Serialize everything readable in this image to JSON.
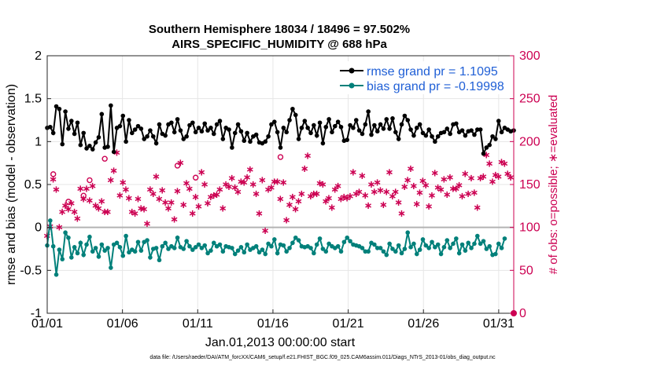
{
  "chart_data": {
    "type": "line",
    "title_line1": "Southern Hemisphere 18034 / 18496 = 97.502%",
    "title_line2": "AIRS_SPECIFIC_HUMIDITY @ 688 hPa",
    "xlabel": "Jan.01,2013 00:00:00 start",
    "ylabel_left": "rmse and bias (model - observation)",
    "ylabel_right": "# of obs: o=possible; ∗=evaluated",
    "footer": "data file: /Users/raeder/DAI/ATM_forcXX/CAM6_setup/f.e21.FHIST_BGC.f09_025.CAM6assim.011/Diags_NTrS_2013-01/obs_diag_output.nc",
    "x_range": [
      1,
      32
    ],
    "x_ticks": [
      {
        "value": 1,
        "label": "01/01"
      },
      {
        "value": 6,
        "label": "01/06"
      },
      {
        "value": 11,
        "label": "01/11"
      },
      {
        "value": 16,
        "label": "01/16"
      },
      {
        "value": 21,
        "label": "01/21"
      },
      {
        "value": 26,
        "label": "01/26"
      },
      {
        "value": 31,
        "label": "01/31"
      }
    ],
    "y_left_range": [
      -1,
      2
    ],
    "y_left_ticks": [
      "-1",
      "-0.5",
      "0",
      "0.5",
      "1",
      "1.5",
      "2"
    ],
    "y_right_range": [
      0,
      300
    ],
    "y_right_ticks": [
      "0",
      "50",
      "100",
      "150",
      "200",
      "250",
      "300"
    ],
    "legend": [
      {
        "label": "rmse grand pr = 1.1095",
        "color": "#000000"
      },
      {
        "label": "bias grand pr = -0.19998",
        "color": "#00807a"
      }
    ],
    "series": [
      {
        "name": "rmse",
        "color": "#000000",
        "values": [
          1.16,
          1.17,
          1.1,
          1.41,
          1.38,
          0.97,
          1.35,
          1.15,
          1.24,
          1.09,
          1.22,
          0.96,
          1.1,
          0.92,
          0.95,
          0.91,
          0.99,
          1.05,
          1.32,
          0.93,
          0.94,
          1.42,
          0.88,
          1.16,
          1.18,
          1.3,
          1.0,
          1.25,
          1.1,
          1.14,
          1.18,
          1.15,
          1.03,
          1.06,
          1.13,
          1.06,
          0.98,
          1.2,
          1.09,
          1.07,
          1.2,
          1.22,
          1.11,
          1.26,
          1.13,
          1.03,
          1.06,
          1.19,
          1.22,
          1.11,
          1.16,
          1.12,
          1.21,
          1.13,
          1.16,
          1.09,
          1.2,
          1.24,
          1.03,
          1.16,
          1.14,
          0.93,
          1.1,
          1.2,
          1.12,
          1.01,
          1.1,
          1.0,
          1.06,
          1.08,
          0.99,
          0.98,
          1.0,
          1.06,
          1.2,
          1.23,
          1.11,
          0.93,
          1.16,
          1.11,
          1.25,
          1.38,
          1.31,
          1.03,
          1.16,
          1.24,
          1.16,
          1.1,
          1.19,
          1.07,
          1.22,
          0.98,
          1.17,
          1.26,
          1.11,
          1.18,
          1.23,
          1.17,
          1.01,
          1.02,
          1.19,
          1.16,
          1.25,
          1.13,
          1.09,
          1.2,
          1.35,
          1.08,
          1.19,
          1.12,
          1.2,
          1.15,
          1.26,
          1.15,
          1.27,
          1.11,
          1.03,
          1.2,
          1.3,
          1.25,
          1.14,
          1.07,
          1.16,
          1.2,
          1.1,
          1.07,
          1.14,
          1.06,
          1.0,
          1.06,
          1.1,
          1.11,
          1.15,
          1.09,
          1.2,
          1.21,
          1.11,
          1.13,
          1.07,
          1.12,
          1.13,
          1.08,
          1.14,
          1.14,
          0.86,
          0.93,
          0.96,
          1.06,
          1.03,
          1.24,
          1.11,
          1.16,
          1.14,
          1.12,
          1.13
        ]
      },
      {
        "name": "bias",
        "color": "#00807a",
        "values": [
          -0.21,
          0.08,
          -0.22,
          -0.55,
          -0.26,
          -0.37,
          -0.06,
          -0.12,
          -0.35,
          -0.23,
          -0.3,
          -0.18,
          -0.32,
          -0.2,
          -0.11,
          -0.28,
          -0.24,
          -0.34,
          -0.2,
          -0.27,
          -0.24,
          -0.47,
          -0.2,
          -0.18,
          -0.23,
          -0.33,
          -0.1,
          -0.29,
          -0.26,
          -0.28,
          -0.17,
          -0.27,
          -0.17,
          -0.15,
          -0.35,
          -0.25,
          -0.24,
          -0.38,
          -0.22,
          -0.18,
          -0.25,
          -0.22,
          -0.24,
          -0.12,
          -0.23,
          -0.25,
          -0.16,
          -0.22,
          -0.26,
          -0.23,
          -0.2,
          -0.24,
          -0.21,
          -0.3,
          -0.27,
          -0.18,
          -0.22,
          -0.2,
          -0.28,
          -0.22,
          -0.23,
          -0.24,
          -0.31,
          -0.27,
          -0.23,
          -0.29,
          -0.2,
          -0.26,
          -0.24,
          -0.22,
          -0.29,
          -0.26,
          -0.31,
          -0.19,
          -0.22,
          -0.14,
          -0.3,
          -0.2,
          -0.21,
          -0.28,
          -0.24,
          -0.18,
          -0.12,
          -0.15,
          -0.22,
          -0.23,
          -0.22,
          -0.24,
          -0.3,
          -0.2,
          -0.13,
          -0.25,
          -0.28,
          -0.19,
          -0.22,
          -0.24,
          -0.22,
          -0.28,
          -0.17,
          -0.12,
          -0.16,
          -0.2,
          -0.21,
          -0.22,
          -0.24,
          -0.28,
          -0.28,
          -0.18,
          -0.2,
          -0.24,
          -0.24,
          -0.28,
          -0.32,
          -0.19,
          -0.25,
          -0.28,
          -0.21,
          -0.3,
          -0.25,
          -0.06,
          -0.23,
          -0.19,
          -0.31,
          -0.26,
          -0.14,
          -0.21,
          -0.24,
          -0.17,
          -0.23,
          -0.2,
          -0.31,
          -0.23,
          -0.15,
          -0.24,
          -0.19,
          -0.13,
          -0.3,
          -0.2,
          -0.27,
          -0.18,
          -0.24,
          -0.19,
          -0.1,
          -0.19,
          -0.16,
          -0.25,
          -0.22,
          -0.32,
          -0.31,
          -0.19,
          -0.24,
          -0.13
        ]
      },
      {
        "name": "# obs possible",
        "color": "#cc0052",
        "values": [
          null,
          null,
          162,
          null,
          null,
          null,
          null,
          130,
          null,
          null,
          null,
          null,
          137,
          null,
          155,
          null,
          null,
          null,
          null,
          180,
          null,
          null,
          null,
          null,
          null,
          null,
          null,
          null,
          null,
          null,
          null,
          null,
          null,
          null,
          null,
          null,
          null,
          null,
          null,
          null,
          null,
          null,
          null,
          172,
          null,
          null,
          null,
          null,
          null,
          158,
          null,
          null,
          null,
          null,
          null,
          null,
          null,
          null,
          null,
          null,
          null,
          null,
          null,
          null,
          null,
          null,
          null,
          null,
          null,
          null,
          null,
          null,
          null,
          null,
          null,
          null,
          null,
          182,
          null,
          null,
          null,
          null,
          null,
          null,
          null,
          null,
          null,
          null,
          null,
          null,
          null,
          null,
          null,
          null,
          null,
          null,
          null,
          null,
          null,
          null,
          null,
          null,
          null,
          null,
          null,
          null,
          null,
          null,
          null,
          null,
          null,
          null,
          null,
          null,
          null,
          null,
          null,
          null,
          null,
          null,
          null,
          null,
          null,
          null,
          null,
          null,
          null,
          null,
          null,
          null,
          null,
          null,
          null,
          null,
          null,
          null,
          null,
          null,
          null,
          null,
          null,
          null,
          null,
          null,
          null,
          null,
          null,
          null,
          null,
          null
        ]
      },
      {
        "name": "# obs evaluated",
        "color": "#cc0052",
        "values": [
          92,
          103,
          158,
          146,
          102,
          120,
          127,
          123,
          130,
          120,
          112,
          147,
          135,
          147,
          133,
          150,
          127,
          124,
          132,
          120,
          120,
          157,
          168,
          189,
          139,
          154,
          146,
          136,
          120,
          118,
          135,
          124,
          123,
          106,
          146,
          141,
          161,
          135,
          145,
          131,
          124,
          131,
          111,
          144,
          177,
          128,
          153,
          147,
          118,
          137,
          126,
          166,
          152,
          130,
          137,
          139,
          140,
          146,
          124,
          152,
          149,
          159,
          148,
          143,
          155,
          154,
          160,
          169,
          152,
          141,
          118,
          157,
          98,
          146,
          148,
          155,
          155,
          135,
          154,
          110,
          128,
          137,
          123,
          132,
          141,
          170,
          185,
          138,
          141,
          141,
          153,
          152,
          132,
          136,
          125,
          146,
          150,
          135,
          137,
          136,
          138,
          166,
          141,
          143,
          162,
          139,
          127,
          152,
          143,
          154,
          145,
          128,
          143,
          166,
          138,
          143,
          131,
          118,
          149,
          157,
          170,
          150,
          129,
          142,
          156,
          151,
          126,
          139,
          165,
          148,
          146,
          158,
          140,
          160,
          147,
          147,
          151,
          138,
          164,
          141,
          159,
          142,
          125,
          159,
          161,
          186,
          176,
          155,
          163,
          161,
          178,
          176,
          164,
          160
        ]
      }
    ]
  }
}
